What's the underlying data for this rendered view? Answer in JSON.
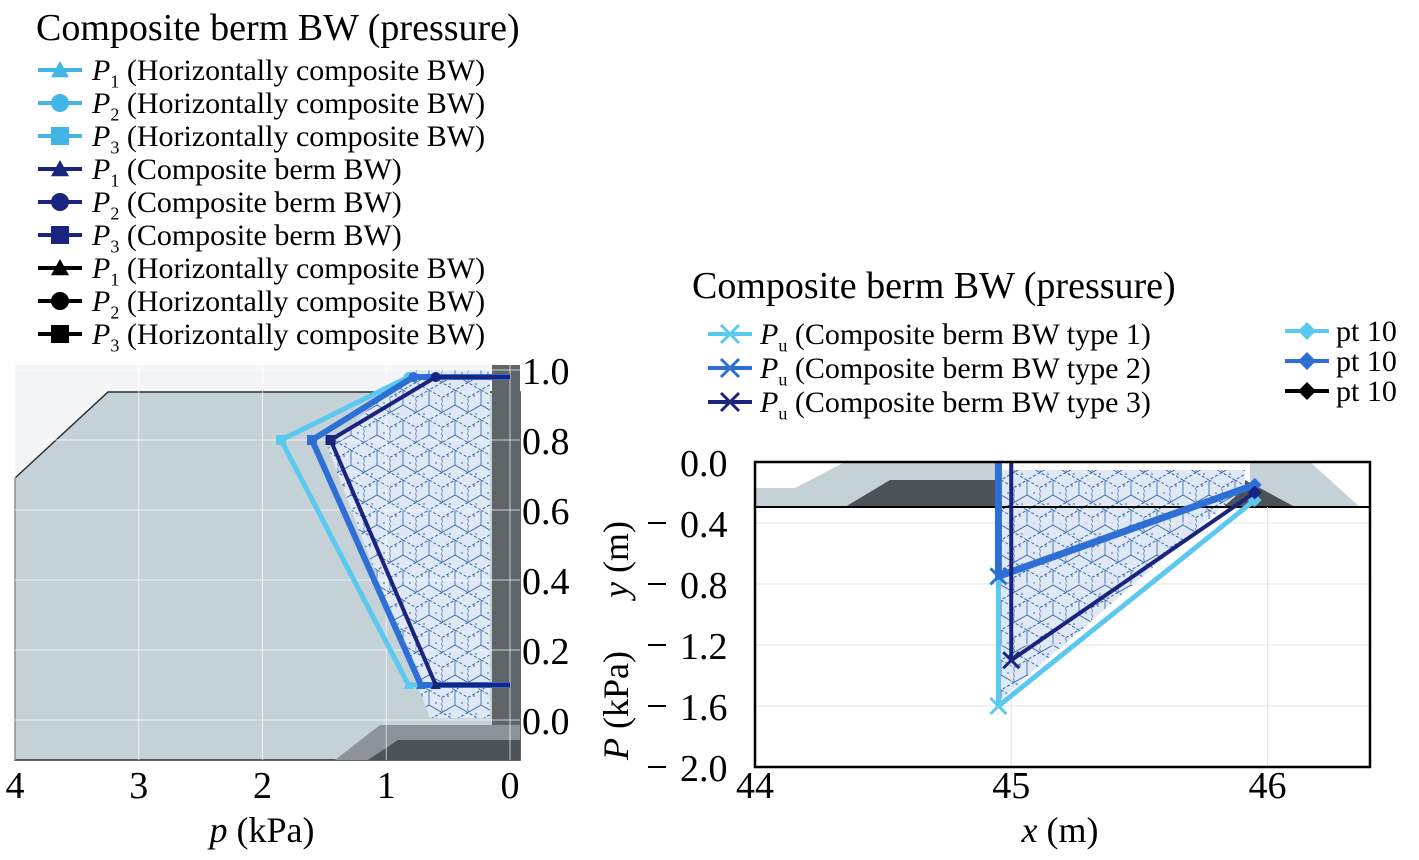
{
  "chart_data": [
    {
      "type": "line",
      "title": "Composite berm BW (pressure)",
      "xlabel_var": "p",
      "xlabel_unit": "(kPa)",
      "ylabel_var": "y",
      "ylabel_unit": "(m)",
      "xlim": [
        4,
        0
      ],
      "ylim": [
        0.0,
        1.0
      ],
      "x_ticks": [
        "4",
        "3",
        "2",
        "1",
        "0"
      ],
      "y_ticks": [
        "0.0",
        "0.2",
        "0.4",
        "0.6",
        "0.8",
        "1.0"
      ],
      "grid": true,
      "legend_position": "top-left",
      "legend": [
        {
          "sym": "P",
          "sub": "1",
          "text": "(Horizontally composite BW)",
          "color": "#41b6e6",
          "marker": "triangle"
        },
        {
          "sym": "P",
          "sub": "2",
          "text": "(Horizontally composite BW)",
          "color": "#41b6e6",
          "marker": "circle"
        },
        {
          "sym": "P",
          "sub": "3",
          "text": "(Horizontally composite BW)",
          "color": "#41b6e6",
          "marker": "square"
        },
        {
          "sym": "P",
          "sub": "1",
          "text": "(Composite berm BW)",
          "color": "#1a237e",
          "marker": "triangle"
        },
        {
          "sym": "P",
          "sub": "2",
          "text": "(Composite berm BW)",
          "color": "#1a237e",
          "marker": "circle"
        },
        {
          "sym": "P",
          "sub": "3",
          "text": "(Composite berm BW)",
          "color": "#1a237e",
          "marker": "square"
        },
        {
          "sym": "P",
          "sub": "1",
          "text": "(Horizontally composite BW)",
          "color": "#000000",
          "marker": "triangle"
        },
        {
          "sym": "P",
          "sub": "2",
          "text": "(Horizontally composite BW)",
          "color": "#000000",
          "marker": "circle"
        },
        {
          "sym": "P",
          "sub": "3",
          "text": "(Horizontally composite BW)",
          "color": "#000000",
          "marker": "square"
        }
      ],
      "series": [
        {
          "color": "#5bc8f0",
          "width": 5,
          "points": [
            [
              0.0,
              0.1
            ],
            [
              0.82,
              0.1
            ],
            [
              1.85,
              0.8
            ],
            [
              0.82,
              0.98
            ],
            [
              0.0,
              0.98
            ]
          ]
        },
        {
          "color": "#2e6fd6",
          "width": 6,
          "points": [
            [
              0.0,
              0.1
            ],
            [
              0.72,
              0.1
            ],
            [
              1.6,
              0.8
            ],
            [
              0.78,
              0.98
            ],
            [
              0.0,
              0.98
            ]
          ]
        },
        {
          "color": "#1a237e",
          "width": 4,
          "points": [
            [
              0.0,
              0.1
            ],
            [
              0.6,
              0.1
            ],
            [
              1.45,
              0.8
            ],
            [
              0.6,
              0.98
            ],
            [
              0.0,
              0.98
            ]
          ]
        }
      ]
    },
    {
      "type": "line",
      "title": "Composite berm BW (pressure)",
      "xlabel_var": "x",
      "xlabel_unit": "(m)",
      "ylabel_var": "P",
      "ylabel_unit": "(kPa)",
      "xlim": [
        44,
        46.4
      ],
      "ylim": [
        0.0,
        -2.0
      ],
      "x_ticks": [
        "44",
        "45",
        "46"
      ],
      "y_ticks": [
        "0.0",
        "0.4",
        "0.8",
        "1.2",
        "1.6",
        "2.0"
      ],
      "grid": true,
      "legend_position": "top",
      "legend_left": [
        {
          "sym": "P",
          "sub": "u",
          "text": "(Composite berm BW type 1)",
          "color": "#5bc8f0"
        },
        {
          "sym": "P",
          "sub": "u",
          "text": "(Composite berm BW type 2)",
          "color": "#2e6fd6"
        },
        {
          "sym": "P",
          "sub": "u",
          "text": "(Composite berm BW type 3)",
          "color": "#1a237e"
        }
      ],
      "legend_right": [
        {
          "text": "pt 10",
          "color": "#5bc8f0"
        },
        {
          "text": "pt 10",
          "color": "#2e6fd6"
        },
        {
          "text": "pt 10",
          "color": "#000000"
        }
      ],
      "series": [
        {
          "color": "#5bc8f0",
          "width": 5,
          "points": [
            [
              44.95,
              0.0
            ],
            [
              44.95,
              -1.6
            ],
            [
              45.95,
              -0.25
            ]
          ]
        },
        {
          "color": "#2e6fd6",
          "width": 7,
          "points": [
            [
              44.95,
              0.0
            ],
            [
              44.95,
              -0.75
            ],
            [
              45.95,
              -0.15
            ]
          ]
        },
        {
          "color": "#1a237e",
          "width": 4,
          "points": [
            [
              45.0,
              0.0
            ],
            [
              45.0,
              -1.3
            ],
            [
              45.95,
              -0.2
            ]
          ]
        }
      ]
    }
  ]
}
